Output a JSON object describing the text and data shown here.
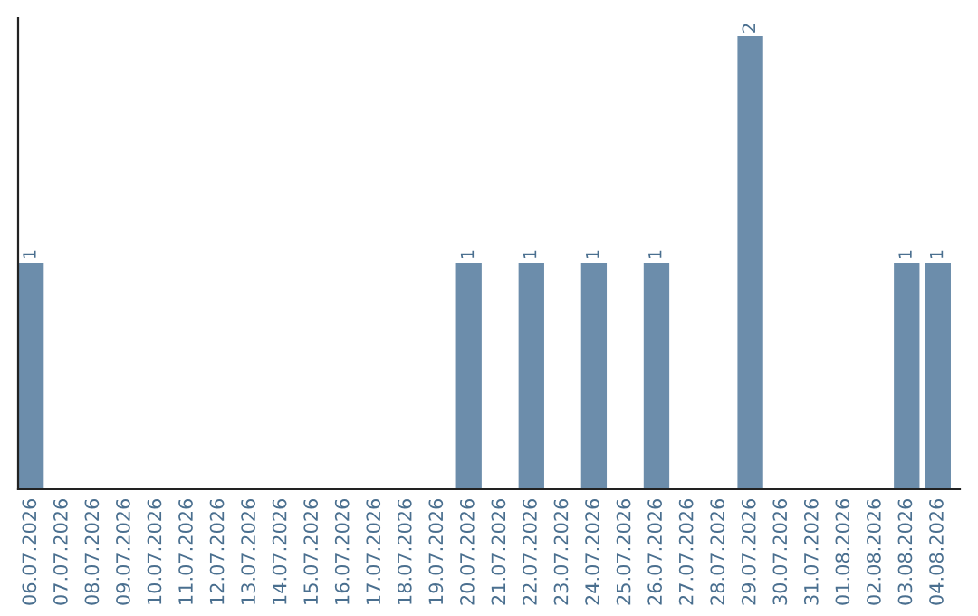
{
  "chart_data": {
    "type": "bar",
    "categories": [
      "06.07.2026",
      "07.07.2026",
      "08.07.2026",
      "09.07.2026",
      "10.07.2026",
      "11.07.2026",
      "12.07.2026",
      "13.07.2026",
      "14.07.2026",
      "15.07.2026",
      "16.07.2026",
      "17.07.2026",
      "18.07.2026",
      "19.07.2026",
      "20.07.2026",
      "21.07.2026",
      "22.07.2026",
      "23.07.2026",
      "24.07.2026",
      "25.07.2026",
      "26.07.2026",
      "27.07.2026",
      "28.07.2026",
      "29.07.2026",
      "30.07.2026",
      "31.07.2026",
      "01.08.2026",
      "02.08.2026",
      "03.08.2026",
      "04.08.2026"
    ],
    "values": [
      1,
      0,
      0,
      0,
      0,
      0,
      0,
      0,
      0,
      0,
      0,
      0,
      0,
      0,
      1,
      0,
      1,
      0,
      1,
      0,
      1,
      0,
      0,
      2,
      0,
      0,
      0,
      0,
      1,
      1
    ],
    "value_labels": [
      "1",
      null,
      null,
      null,
      null,
      null,
      null,
      null,
      null,
      null,
      null,
      null,
      null,
      null,
      "1",
      null,
      "1",
      null,
      "1",
      null,
      "1",
      null,
      null,
      "2",
      null,
      null,
      null,
      null,
      "1",
      "1"
    ],
    "color": "#6c8dab",
    "grid": false,
    "legend": false,
    "tick_labels": "x"
  }
}
